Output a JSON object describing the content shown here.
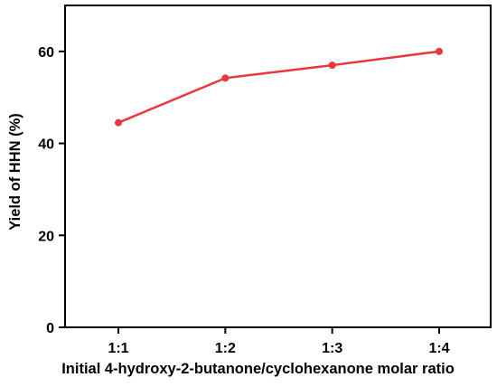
{
  "chart_data": {
    "type": "line",
    "categories": [
      "1:1",
      "1:2",
      "1:3",
      "1:4"
    ],
    "series": [
      {
        "values": [
          44.5,
          54.2,
          57.0,
          60.0
        ]
      }
    ],
    "xlabel": "Initial 4-hydroxy-2-butanone/cyclohexanone molar ratio",
    "ylabel": "Yield of HHN (%)",
    "ylim": [
      0,
      70
    ],
    "yticks": [
      0,
      20,
      40,
      60
    ],
    "grid": false,
    "legend": "none",
    "line_color": "#e8383d",
    "axis_color": "#000000"
  }
}
